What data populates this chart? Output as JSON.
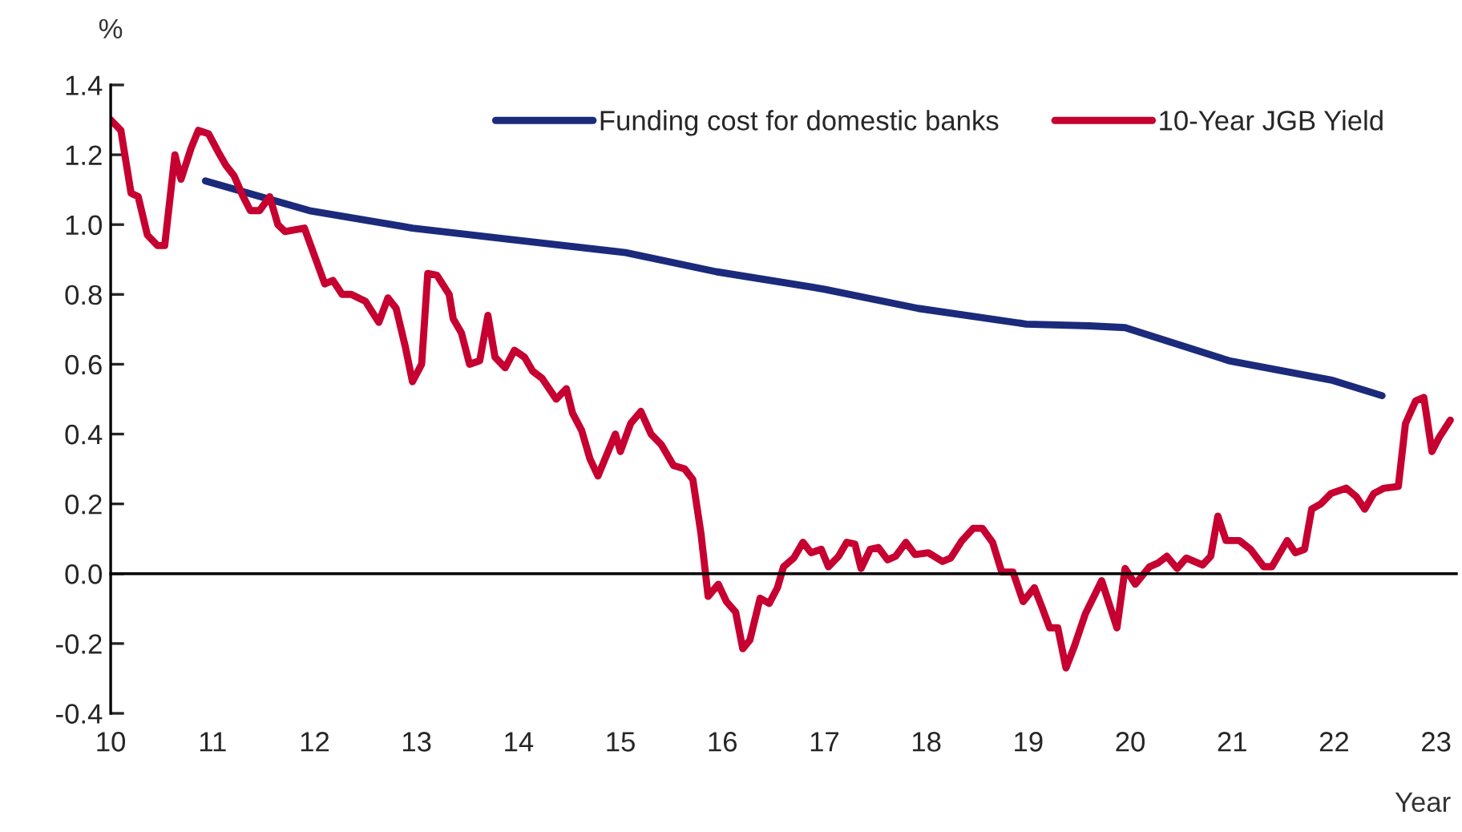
{
  "chart_data": {
    "type": "line",
    "ylabel": "%",
    "xlabel": "Year",
    "xlim": [
      10,
      23.2
    ],
    "xticks": [
      10,
      11,
      12,
      13,
      14,
      15,
      16,
      17,
      18,
      19,
      20,
      21,
      22,
      23
    ],
    "ylim": [
      -0.4,
      1.4
    ],
    "yticks": [
      {
        "value": -0.4,
        "label": "-0.4"
      },
      {
        "value": -0.2,
        "label": "-0.2"
      },
      {
        "value": 0,
        "label": "0.0"
      },
      {
        "value": 0.2,
        "label": "0.2"
      },
      {
        "value": 0.4,
        "label": "0.4"
      },
      {
        "value": 0.6,
        "label": "0.6"
      },
      {
        "value": 0.8,
        "label": "0.8"
      },
      {
        "value": 1.0,
        "label": "1.0"
      },
      {
        "value": 1.2,
        "label": "1.2"
      },
      {
        "value": 1.4,
        "label": "1.4"
      }
    ],
    "legend": "top right",
    "marker": "none",
    "line_style": "solid",
    "series": [
      {
        "name": "Funding cost for domestic banks",
        "color": "#1b2a7b",
        "x": [
          10.93,
          11.95,
          12.96,
          14.0,
          15.05,
          15.94,
          17.0,
          17.92,
          18.98,
          19.6,
          19.95,
          20.97,
          21.97,
          22.47
        ],
        "values": [
          1.125,
          1.04,
          0.99,
          0.955,
          0.92,
          0.865,
          0.815,
          0.76,
          0.715,
          0.71,
          0.705,
          0.61,
          0.555,
          0.51
        ]
      },
      {
        "name": "10-Year JGB Yield",
        "color": "#c60030",
        "x": [
          10.0,
          10.1,
          10.2,
          10.27,
          10.36,
          10.46,
          10.53,
          10.63,
          10.69,
          10.79,
          10.86,
          10.96,
          11.07,
          11.13,
          11.21,
          11.3,
          11.37,
          11.46,
          11.56,
          11.64,
          11.71,
          11.9,
          12.1,
          12.18,
          12.27,
          12.36,
          12.5,
          12.63,
          12.72,
          12.8,
          12.89,
          12.96,
          13.05,
          13.11,
          13.2,
          13.32,
          13.36,
          13.44,
          13.52,
          13.62,
          13.7,
          13.77,
          13.87,
          13.96,
          14.06,
          14.14,
          14.23,
          14.37,
          14.47,
          14.53,
          14.62,
          14.7,
          14.78,
          14.95,
          15.0,
          15.1,
          15.2,
          15.3,
          15.4,
          15.52,
          15.63,
          15.71,
          15.79,
          15.86,
          15.96,
          16.04,
          16.13,
          16.2,
          16.27,
          16.37,
          16.46,
          16.54,
          16.6,
          16.7,
          16.79,
          16.87,
          16.97,
          17.04,
          17.14,
          17.22,
          17.3,
          17.36,
          17.45,
          17.53,
          17.62,
          17.7,
          17.8,
          17.89,
          18.02,
          18.16,
          18.24,
          18.35,
          18.46,
          18.55,
          18.65,
          18.74,
          18.85,
          18.95,
          19.06,
          19.14,
          19.21,
          19.29,
          19.37,
          19.45,
          19.56,
          19.72,
          19.87,
          19.95,
          20.05,
          20.19,
          20.27,
          20.36,
          20.46,
          20.55,
          20.71,
          20.79,
          20.86,
          20.94,
          21.07,
          21.18,
          21.31,
          21.39,
          21.54,
          21.62,
          21.71,
          21.78,
          21.87,
          21.97,
          22.12,
          22.22,
          22.3,
          22.39,
          22.49,
          22.63,
          22.7,
          22.8,
          22.88,
          22.96,
          23.03,
          23.14
        ],
        "values": [
          1.3,
          1.27,
          1.09,
          1.08,
          0.97,
          0.94,
          0.94,
          1.2,
          1.13,
          1.22,
          1.27,
          1.26,
          1.2,
          1.17,
          1.14,
          1.08,
          1.04,
          1.04,
          1.08,
          1.0,
          0.98,
          0.99,
          0.83,
          0.84,
          0.8,
          0.8,
          0.78,
          0.72,
          0.79,
          0.76,
          0.65,
          0.55,
          0.6,
          0.86,
          0.855,
          0.8,
          0.73,
          0.69,
          0.6,
          0.61,
          0.74,
          0.62,
          0.59,
          0.64,
          0.62,
          0.58,
          0.56,
          0.5,
          0.53,
          0.46,
          0.41,
          0.33,
          0.28,
          0.4,
          0.35,
          0.43,
          0.465,
          0.4,
          0.37,
          0.31,
          0.3,
          0.27,
          0.115,
          -0.065,
          -0.03,
          -0.08,
          -0.11,
          -0.215,
          -0.19,
          -0.07,
          -0.085,
          -0.04,
          0.02,
          0.045,
          0.09,
          0.06,
          0.07,
          0.02,
          0.05,
          0.09,
          0.085,
          0.015,
          0.07,
          0.075,
          0.04,
          0.05,
          0.09,
          0.055,
          0.06,
          0.035,
          0.045,
          0.095,
          0.13,
          0.13,
          0.09,
          0.005,
          0.005,
          -0.08,
          -0.04,
          -0.1,
          -0.155,
          -0.155,
          -0.27,
          -0.21,
          -0.115,
          -0.02,
          -0.155,
          0.015,
          -0.03,
          0.02,
          0.03,
          0.05,
          0.015,
          0.045,
          0.025,
          0.05,
          0.165,
          0.095,
          0.095,
          0.07,
          0.02,
          0.02,
          0.095,
          0.06,
          0.07,
          0.185,
          0.2,
          0.23,
          0.245,
          0.22,
          0.185,
          0.23,
          0.245,
          0.25,
          0.43,
          0.495,
          0.505,
          0.35,
          0.39,
          0.44
        ]
      }
    ]
  }
}
